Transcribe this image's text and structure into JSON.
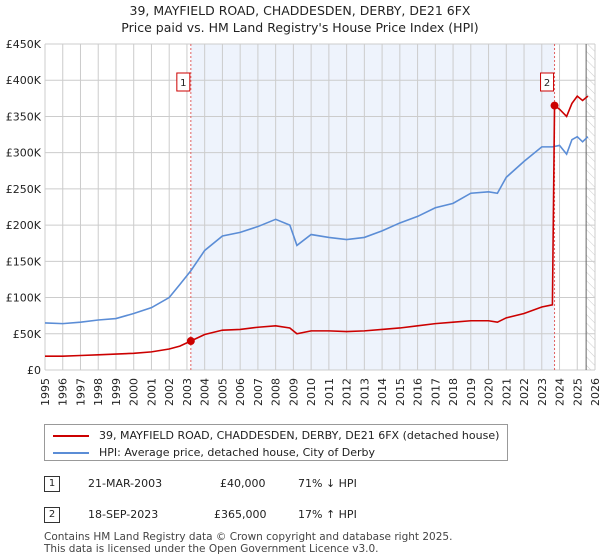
{
  "title": "39, MAYFIELD ROAD, CHADDESDEN, DERBY, DE21 6FX",
  "subtitle": "Price paid vs. HM Land Registry's House Price Index (HPI)",
  "chart_data": {
    "type": "line",
    "xlim": [
      1995,
      2026
    ],
    "ylim": [
      0,
      450000
    ],
    "yticks": [
      0,
      50000,
      100000,
      150000,
      200000,
      250000,
      300000,
      350000,
      400000,
      450000
    ],
    "ytick_labels": [
      "£0",
      "£50K",
      "£100K",
      "£150K",
      "£200K",
      "£250K",
      "£300K",
      "£350K",
      "£400K",
      "£450K"
    ],
    "xticks": [
      "1995",
      "1996",
      "1997",
      "1998",
      "1999",
      "2000",
      "2001",
      "2002",
      "2003",
      "2004",
      "2005",
      "2006",
      "2007",
      "2008",
      "2009",
      "2010",
      "2011",
      "2012",
      "2013",
      "2014",
      "2015",
      "2016",
      "2017",
      "2018",
      "2019",
      "2020",
      "2021",
      "2022",
      "2023",
      "2024",
      "2025",
      "2026"
    ],
    "grid": true,
    "series": [
      {
        "name": "39, MAYFIELD ROAD, CHADDESDEN, DERBY, DE21 6FX (detached house)",
        "color": "#cc0000",
        "x": [
          1995,
          1996,
          1997,
          1998,
          1999,
          2000,
          2001,
          2002,
          2002.6,
          2003.22,
          2004,
          2005,
          2006,
          2007,
          2008,
          2008.8,
          2009.2,
          2010,
          2011,
          2012,
          2013,
          2014,
          2015,
          2016,
          2017,
          2018,
          2019,
          2020,
          2020.5,
          2021,
          2022,
          2023,
          2023.6,
          2023.72,
          2024,
          2024.4,
          2024.7,
          2025,
          2025.3,
          2025.6
        ],
        "y": [
          19000,
          19000,
          20000,
          21000,
          22000,
          23000,
          25000,
          29000,
          33000,
          40000,
          49000,
          55000,
          56000,
          59000,
          61000,
          58000,
          50000,
          54000,
          54000,
          53000,
          54000,
          56000,
          58000,
          61000,
          64000,
          66000,
          68000,
          68000,
          66000,
          72000,
          78000,
          87000,
          90000,
          365000,
          360000,
          350000,
          368000,
          378000,
          372000,
          378000
        ]
      },
      {
        "name": "HPI: Average price, detached house, City of Derby",
        "color": "#5b8dd6",
        "x": [
          1995,
          1996,
          1997,
          1998,
          1999,
          2000,
          2001,
          2002,
          2002.6,
          2003.22,
          2004,
          2005,
          2006,
          2007,
          2008,
          2008.8,
          2009.2,
          2010,
          2011,
          2012,
          2013,
          2014,
          2015,
          2016,
          2017,
          2018,
          2019,
          2020,
          2020.5,
          2021,
          2022,
          2023,
          2023.6,
          2024,
          2024.4,
          2024.7,
          2025,
          2025.3,
          2025.6
        ],
        "y": [
          65000,
          64000,
          66000,
          69000,
          71000,
          78000,
          86000,
          100000,
          118000,
          137000,
          165000,
          185000,
          190000,
          198000,
          208000,
          200000,
          172000,
          187000,
          183000,
          180000,
          183000,
          192000,
          203000,
          212000,
          224000,
          230000,
          244000,
          246000,
          244000,
          266000,
          288000,
          308000,
          308000,
          310000,
          298000,
          318000,
          322000,
          315000,
          322000
        ]
      }
    ],
    "annotations": [
      {
        "label": "1",
        "x": 2003.22,
        "y": 40000
      },
      {
        "label": "2",
        "x": 2023.72,
        "y": 365000
      }
    ],
    "shaded_ranges": [
      [
        2003.22,
        2023.72
      ]
    ],
    "hatched_from": 2025.5
  },
  "legend": {
    "items": [
      "39, MAYFIELD ROAD, CHADDESDEN, DERBY, DE21 6FX (detached house)",
      "HPI: Average price, detached house, City of Derby"
    ]
  },
  "sales": [
    {
      "num": "1",
      "date": "21-MAR-2003",
      "price": "£40,000",
      "hpi": "71% ↓ HPI"
    },
    {
      "num": "2",
      "date": "18-SEP-2023",
      "price": "£365,000",
      "hpi": "17% ↑ HPI"
    }
  ],
  "footer": {
    "line1": "Contains HM Land Registry data © Crown copyright and database right 2025.",
    "line2": "This data is licensed under the Open Government Licence v3.0."
  }
}
